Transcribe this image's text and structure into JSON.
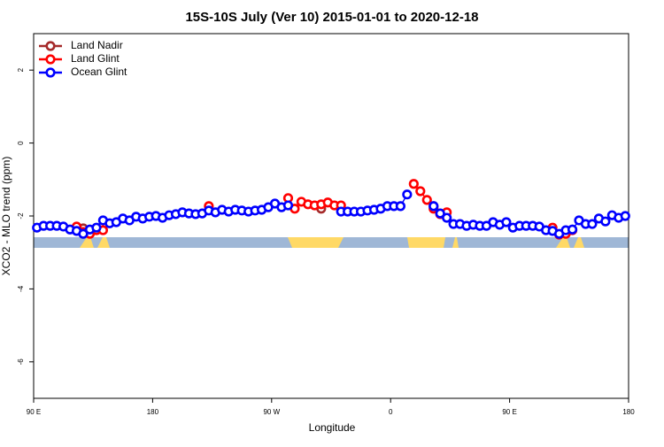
{
  "chart_data": {
    "type": "line",
    "title": "15S-10S July (Ver 10)   2015-01-01 to 2020-12-18",
    "x_label": "Longitude",
    "y_label": "XCO2 - MLO trend (ppm)",
    "xlim": [
      90,
      540
    ],
    "ylim": [
      -7,
      3
    ],
    "xticks": [
      {
        "value": 90,
        "label": "90 E"
      },
      180,
      {
        "value": 270,
        "label": "90 W"
      },
      {
        "value": 360,
        "label": "0"
      },
      {
        "value": 450,
        "label": "90 E"
      },
      {
        "value": 540,
        "label": "180"
      }
    ],
    "yticks": [
      -6,
      -4,
      -2,
      0,
      2
    ],
    "legend": "top-left",
    "x": [
      92.5,
      97.5,
      102.5,
      107.5,
      112.5,
      117.5,
      122.5,
      127.5,
      132.5,
      137.5,
      142.5,
      147.5,
      152.5,
      157.5,
      162.5,
      167.5,
      172.5,
      177.5,
      182.5,
      187.5,
      192.5,
      197.5,
      202.5,
      207.5,
      212.5,
      217.5,
      222.5,
      227.5,
      232.5,
      237.5,
      242.5,
      247.5,
      252.5,
      257.5,
      262.5,
      267.5,
      272.5,
      277.5,
      282.5,
      287.5,
      292.5,
      297.5,
      302.5,
      307.5,
      312.5,
      317.5,
      322.5,
      327.5,
      332.5,
      337.5,
      342.5,
      347.5,
      352.5,
      357.5,
      362.5,
      367.5,
      372.5,
      377.5,
      382.5,
      387.5,
      392.5,
      397.5,
      402.5,
      407.5,
      412.5,
      417.5,
      422.5,
      427.5,
      432.5,
      437.5,
      442.5,
      447.5,
      452.5,
      457.5,
      462.5,
      467.5,
      472.5,
      477.5,
      482.5,
      487.5,
      492.5,
      497.5,
      502.5,
      507.5,
      512.5,
      517.5,
      522.5,
      527.5,
      532.5,
      537.5
    ],
    "series": [
      {
        "name": "Land Nadir",
        "color": "#a52a2a",
        "values": [
          null,
          null,
          null,
          null,
          null,
          null,
          null,
          -2.34,
          null,
          null,
          null,
          null,
          null,
          null,
          null,
          null,
          null,
          null,
          null,
          null,
          null,
          null,
          null,
          null,
          null,
          null,
          null,
          null,
          null,
          null,
          null,
          null,
          null,
          null,
          null,
          null,
          null,
          null,
          null,
          null,
          null,
          null,
          null,
          -1.8,
          null,
          null,
          null,
          null,
          null,
          null,
          null,
          null,
          null,
          null,
          null,
          null,
          null,
          null,
          null,
          null,
          -1.73,
          null,
          null,
          null,
          null,
          null,
          null,
          null,
          null,
          null,
          null,
          null,
          null,
          null,
          null,
          null,
          null,
          null,
          null,
          null,
          null,
          null,
          null,
          null,
          null,
          null,
          null,
          null,
          null,
          null
        ]
      },
      {
        "name": "Land Glint",
        "color": "#ff0000",
        "values": [
          null,
          null,
          null,
          null,
          null,
          null,
          -2.29,
          -2.44,
          -2.49,
          -2.39,
          -2.39,
          null,
          null,
          null,
          null,
          null,
          null,
          null,
          null,
          null,
          null,
          null,
          null,
          null,
          null,
          null,
          -1.73,
          null,
          null,
          null,
          null,
          null,
          null,
          null,
          null,
          null,
          null,
          null,
          -1.51,
          -1.8,
          -1.61,
          -1.68,
          -1.71,
          -1.68,
          -1.63,
          -1.71,
          -1.71,
          null,
          null,
          null,
          null,
          null,
          null,
          null,
          null,
          null,
          null,
          -1.12,
          -1.32,
          -1.56,
          -1.8,
          -1.95,
          -1.9,
          null,
          null,
          null,
          null,
          null,
          null,
          null,
          null,
          null,
          null,
          null,
          null,
          null,
          null,
          null,
          -2.32,
          -2.51,
          -2.49,
          -2.39,
          null,
          null,
          null,
          null,
          null,
          null,
          null,
          null
        ]
      },
      {
        "name": "Ocean Glint",
        "color": "#0000ff",
        "values": [
          -2.32,
          -2.27,
          -2.27,
          -2.27,
          -2.29,
          -2.37,
          -2.41,
          -2.49,
          -2.37,
          -2.32,
          -2.12,
          -2.2,
          -2.17,
          -2.07,
          -2.12,
          -2.02,
          -2.07,
          -2.02,
          -2.0,
          -2.05,
          -1.98,
          -1.95,
          -1.9,
          -1.93,
          -1.95,
          -1.93,
          -1.85,
          -1.9,
          -1.83,
          -1.88,
          -1.83,
          -1.85,
          -1.88,
          -1.85,
          -1.83,
          -1.76,
          -1.66,
          -1.76,
          -1.71,
          null,
          null,
          null,
          null,
          null,
          null,
          null,
          -1.88,
          -1.88,
          -1.88,
          -1.88,
          -1.85,
          -1.83,
          -1.8,
          -1.73,
          -1.73,
          -1.73,
          -1.41,
          null,
          null,
          null,
          -1.73,
          -1.93,
          -2.05,
          -2.22,
          -2.22,
          -2.27,
          -2.24,
          -2.27,
          -2.27,
          -2.17,
          -2.24,
          -2.17,
          -2.32,
          -2.27,
          -2.27,
          -2.27,
          -2.29,
          -2.39,
          -2.41,
          -2.49,
          -2.39,
          -2.37,
          -2.12,
          -2.22,
          -2.22,
          -2.07,
          -2.15,
          -1.98,
          -2.05,
          -2.0
        ]
      }
    ]
  }
}
